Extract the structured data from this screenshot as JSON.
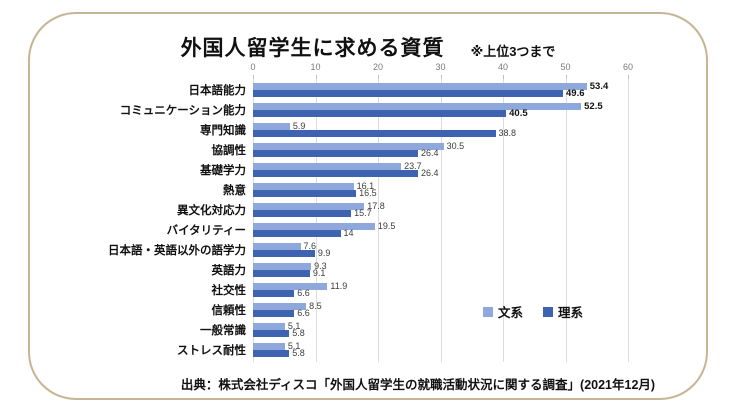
{
  "title": "外国人留学生に求める資質",
  "note": "※上位3つまで",
  "source": "出典：株式会社ディスコ「外国人留学生の就職活動状況に関する調査」(2021年12月)",
  "colors": {
    "bunkei_bar": "#8FA8DC",
    "rikei_bar": "#3E63B0",
    "gridline": "#DCDCDC",
    "frame_border": "#C6B494",
    "tick_text": "#7A7A7A"
  },
  "legend": [
    {
      "label": "文系",
      "color": "#8FA8DC"
    },
    {
      "label": "理系",
      "color": "#3E63B0"
    }
  ],
  "chart_data": {
    "type": "bar",
    "orientation": "horizontal",
    "title": "外国人留学生に求める資質",
    "subtitle": "※上位3つまで",
    "categories": [
      "日本語能力",
      "コミュニケーション能力",
      "専門知識",
      "協調性",
      "基礎学力",
      "熱意",
      "異文化対応力",
      "バイタリティー",
      "日本語・英語以外の語学力",
      "英語力",
      "社交性",
      "信頼性",
      "一般常識",
      "ストレス耐性"
    ],
    "series": [
      {
        "name": "文系",
        "color": "#8FA8DC",
        "values": [
          53.4,
          52.5,
          5.9,
          30.5,
          23.7,
          16.1,
          17.8,
          19.5,
          7.6,
          9.3,
          11.9,
          8.5,
          5.1,
          5.1
        ]
      },
      {
        "name": "理系",
        "color": "#3E63B0",
        "values": [
          49.6,
          40.5,
          38.8,
          26.4,
          26.4,
          16.5,
          15.7,
          14,
          9.9,
          9.1,
          6.6,
          6.6,
          5.8,
          5.8
        ]
      }
    ],
    "xlim": [
      0,
      60
    ],
    "xticks": [
      0,
      10,
      20,
      30,
      40,
      50,
      60
    ],
    "grid": true,
    "legend_position": "inside-right",
    "emphasized_rows": [
      0,
      1
    ]
  }
}
